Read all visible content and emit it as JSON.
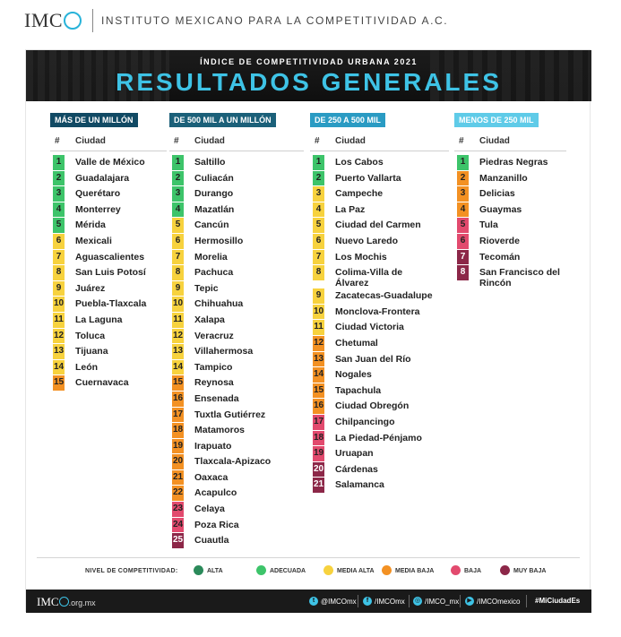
{
  "header": {
    "logo_text": "IMC",
    "institute": "INSTITUTO MEXICANO PARA LA COMPETITIVIDAD A.C."
  },
  "banner": {
    "subtitle": "ÍNDICE DE COMPETITIVIDAD URBANA 2021",
    "title": "RESULTADOS GENERALES"
  },
  "colors": {
    "alta": "#2b8a5a",
    "adecuada": "#3dc46a",
    "media_alta": "#f7d23e",
    "media_baja": "#f39123",
    "baja": "#e24a6e",
    "muy_baja": "#8c2748",
    "banner_title": "#3ec3e6"
  },
  "table_labels": {
    "num": "#",
    "city": "Ciudad"
  },
  "columns": [
    {
      "header": "MÁS DE UN MILLÓN",
      "header_color": "#114a64",
      "cities": [
        {
          "rank": "1",
          "name": "Valle de México",
          "level": "adecuada"
        },
        {
          "rank": "2",
          "name": "Guadalajara",
          "level": "adecuada"
        },
        {
          "rank": "3",
          "name": "Querétaro",
          "level": "adecuada"
        },
        {
          "rank": "4",
          "name": "Monterrey",
          "level": "adecuada"
        },
        {
          "rank": "5",
          "name": "Mérida",
          "level": "adecuada"
        },
        {
          "rank": "6",
          "name": "Mexicali",
          "level": "media_alta"
        },
        {
          "rank": "7",
          "name": "Aguascalientes",
          "level": "media_alta"
        },
        {
          "rank": "8",
          "name": "San Luis Potosí",
          "level": "media_alta"
        },
        {
          "rank": "9",
          "name": "Juárez",
          "level": "media_alta"
        },
        {
          "rank": "10",
          "name": "Puebla-Tlaxcala",
          "level": "media_alta"
        },
        {
          "rank": "11",
          "name": "La Laguna",
          "level": "media_alta"
        },
        {
          "rank": "12",
          "name": "Toluca",
          "level": "media_alta"
        },
        {
          "rank": "13",
          "name": "Tijuana",
          "level": "media_alta"
        },
        {
          "rank": "14",
          "name": "León",
          "level": "media_alta"
        },
        {
          "rank": "15",
          "name": "Cuernavaca",
          "level": "media_baja"
        }
      ]
    },
    {
      "header": "DE 500 MIL A UN MILLÓN",
      "header_color": "#1b6079",
      "cities": [
        {
          "rank": "1",
          "name": "Saltillo",
          "level": "adecuada"
        },
        {
          "rank": "2",
          "name": "Culiacán",
          "level": "adecuada"
        },
        {
          "rank": "3",
          "name": "Durango",
          "level": "adecuada"
        },
        {
          "rank": "4",
          "name": "Mazatlán",
          "level": "adecuada"
        },
        {
          "rank": "5",
          "name": "Cancún",
          "level": "media_alta"
        },
        {
          "rank": "6",
          "name": "Hermosillo",
          "level": "media_alta"
        },
        {
          "rank": "7",
          "name": "Morelia",
          "level": "media_alta"
        },
        {
          "rank": "8",
          "name": "Pachuca",
          "level": "media_alta"
        },
        {
          "rank": "9",
          "name": "Tepic",
          "level": "media_alta"
        },
        {
          "rank": "10",
          "name": "Chihuahua",
          "level": "media_alta"
        },
        {
          "rank": "11",
          "name": "Xalapa",
          "level": "media_alta"
        },
        {
          "rank": "12",
          "name": "Veracruz",
          "level": "media_alta"
        },
        {
          "rank": "13",
          "name": "Villahermosa",
          "level": "media_alta"
        },
        {
          "rank": "14",
          "name": "Tampico",
          "level": "media_alta"
        },
        {
          "rank": "15",
          "name": "Reynosa",
          "level": "media_baja"
        },
        {
          "rank": "16",
          "name": "Ensenada",
          "level": "media_baja"
        },
        {
          "rank": "17",
          "name": "Tuxtla Gutiérrez",
          "level": "media_baja"
        },
        {
          "rank": "18",
          "name": "Matamoros",
          "level": "media_baja"
        },
        {
          "rank": "19",
          "name": "Irapuato",
          "level": "media_baja"
        },
        {
          "rank": "20",
          "name": "Tlaxcala-Apizaco",
          "level": "media_baja"
        },
        {
          "rank": "21",
          "name": "Oaxaca",
          "level": "media_baja"
        },
        {
          "rank": "22",
          "name": "Acapulco",
          "level": "media_baja"
        },
        {
          "rank": "23",
          "name": "Celaya",
          "level": "baja"
        },
        {
          "rank": "24",
          "name": "Poza Rica",
          "level": "baja"
        },
        {
          "rank": "25",
          "name": "Cuautla",
          "level": "muy_baja"
        }
      ]
    },
    {
      "header": "DE 250 A 500 MIL",
      "header_color": "#2a9bc3",
      "cities": [
        {
          "rank": "1",
          "name": "Los Cabos",
          "level": "adecuada"
        },
        {
          "rank": "2",
          "name": "Puerto Vallarta",
          "level": "adecuada"
        },
        {
          "rank": "3",
          "name": "Campeche",
          "level": "media_alta"
        },
        {
          "rank": "4",
          "name": "La Paz",
          "level": "media_alta"
        },
        {
          "rank": "5",
          "name": "Ciudad del Carmen",
          "level": "media_alta"
        },
        {
          "rank": "6",
          "name": "Nuevo Laredo",
          "level": "media_alta"
        },
        {
          "rank": "7",
          "name": "Los Mochis",
          "level": "media_alta"
        },
        {
          "rank": "8",
          "name": "Colima-Villa de Álvarez",
          "level": "media_alta"
        },
        {
          "rank": "9",
          "name": "Zacatecas-Guadalupe",
          "level": "media_alta"
        },
        {
          "rank": "10",
          "name": "Monclova-Frontera",
          "level": "media_alta"
        },
        {
          "rank": "11",
          "name": "Ciudad Victoria",
          "level": "media_alta"
        },
        {
          "rank": "12",
          "name": "Chetumal",
          "level": "media_baja"
        },
        {
          "rank": "13",
          "name": "San Juan del Río",
          "level": "media_baja"
        },
        {
          "rank": "14",
          "name": "Nogales",
          "level": "media_baja"
        },
        {
          "rank": "15",
          "name": "Tapachula",
          "level": "media_baja"
        },
        {
          "rank": "16",
          "name": "Ciudad Obregón",
          "level": "media_baja"
        },
        {
          "rank": "17",
          "name": "Chilpancingo",
          "level": "baja"
        },
        {
          "rank": "18",
          "name": "La Piedad-Pénjamo",
          "level": "baja"
        },
        {
          "rank": "19",
          "name": "Uruapan",
          "level": "baja"
        },
        {
          "rank": "20",
          "name": "Cárdenas",
          "level": "muy_baja"
        },
        {
          "rank": "21",
          "name": "Salamanca",
          "level": "muy_baja"
        }
      ]
    },
    {
      "header": "MENOS DE 250 MIL",
      "header_color": "#5fcbe8",
      "cities": [
        {
          "rank": "1",
          "name": "Piedras Negras",
          "level": "adecuada"
        },
        {
          "rank": "2",
          "name": "Manzanillo",
          "level": "media_baja"
        },
        {
          "rank": "3",
          "name": "Delicias",
          "level": "media_baja"
        },
        {
          "rank": "4",
          "name": "Guaymas",
          "level": "media_baja"
        },
        {
          "rank": "5",
          "name": "Tula",
          "level": "baja"
        },
        {
          "rank": "6",
          "name": "Rioverde",
          "level": "baja"
        },
        {
          "rank": "7",
          "name": "Tecomán",
          "level": "muy_baja"
        },
        {
          "rank": "8",
          "name": "San Francisco del Rincón",
          "level": "muy_baja"
        }
      ]
    }
  ],
  "legend": {
    "label": "NIVEL DE COMPETITIVIDAD:",
    "items": [
      {
        "key": "alta",
        "label": "ALTA"
      },
      {
        "key": "adecuada",
        "label": "ADECUADA"
      },
      {
        "key": "media_alta",
        "label": "MEDIA ALTA"
      },
      {
        "key": "media_baja",
        "label": "MEDIA BAJA"
      },
      {
        "key": "baja",
        "label": "BAJA"
      },
      {
        "key": "muy_baja",
        "label": "MUY BAJA"
      }
    ]
  },
  "footer": {
    "logo_text": "IMC",
    "domain": ".org.mx",
    "social": [
      {
        "icon": "twitter-icon",
        "glyph": "t",
        "handle": "@IMCOmx"
      },
      {
        "icon": "facebook-icon",
        "glyph": "f",
        "handle": "/IMCOmx"
      },
      {
        "icon": "instagram-icon",
        "glyph": "◎",
        "handle": "/IMCO_mx"
      },
      {
        "icon": "youtube-icon",
        "glyph": "▶",
        "handle": "/IMCOmexico"
      }
    ],
    "hashtag": "#MiCiudadEs"
  }
}
